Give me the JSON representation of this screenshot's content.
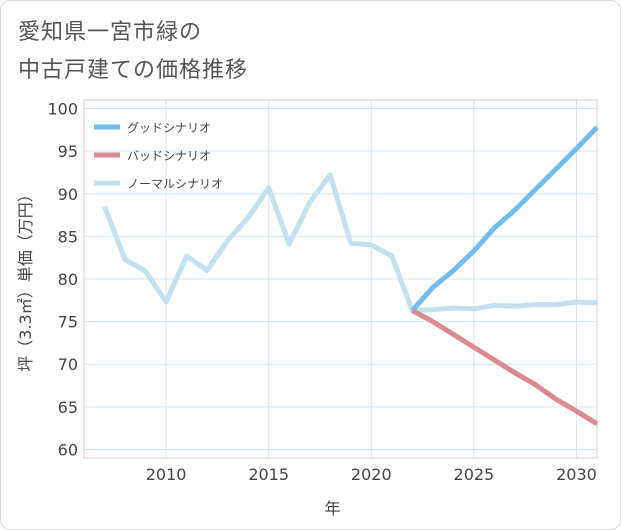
{
  "chart_data": {
    "type": "line",
    "title": [
      "愛知県一宮市緑の",
      "中古戸建ての価格推移"
    ],
    "xlabel": "年",
    "ylabel": "坪（3.3㎡）単価（万円）",
    "xlim": [
      2006,
      2031
    ],
    "ylim": [
      59,
      101
    ],
    "xticks": [
      2010,
      2015,
      2020,
      2025,
      2030
    ],
    "yticks": [
      60,
      65,
      70,
      75,
      80,
      85,
      90,
      95,
      100
    ],
    "legend": [
      "グッドシナリオ",
      "バッドシナリオ",
      "ノーマルシナリオ"
    ],
    "series": [
      {
        "name": "ノーマルシナリオ",
        "color": "#c3e0ee",
        "x": [
          2007,
          2008,
          2009,
          2010,
          2011,
          2012,
          2013,
          2014,
          2015,
          2016,
          2017,
          2018,
          2019,
          2020,
          2021,
          2022,
          2023,
          2024,
          2025,
          2026,
          2027,
          2028,
          2029,
          2030,
          2031
        ],
        "y": [
          88.5,
          82.3,
          80.9,
          77.3,
          82.7,
          81.0,
          84.5,
          87.2,
          90.7,
          84.1,
          89.0,
          92.2,
          84.2,
          84.0,
          82.7,
          76.3,
          76.4,
          76.6,
          76.5,
          76.9,
          76.8,
          77.0,
          77.0,
          77.3,
          77.2
        ]
      },
      {
        "name": "グッドシナリオ",
        "color": "#72bdef",
        "x": [
          2022,
          2023,
          2024,
          2025,
          2026,
          2027,
          2028,
          2029,
          2030,
          2031
        ],
        "y": [
          76.3,
          79.0,
          81.0,
          83.3,
          86.0,
          88.1,
          90.5,
          92.9,
          95.3,
          97.8
        ]
      },
      {
        "name": "バッドシナリオ",
        "color": "#da8a90",
        "x": [
          2022,
          2023,
          2024,
          2025,
          2026,
          2027,
          2028,
          2029,
          2030,
          2031
        ],
        "y": [
          76.3,
          75.0,
          73.5,
          72.0,
          70.5,
          69.0,
          67.6,
          65.9,
          64.5,
          63.0
        ]
      }
    ]
  }
}
